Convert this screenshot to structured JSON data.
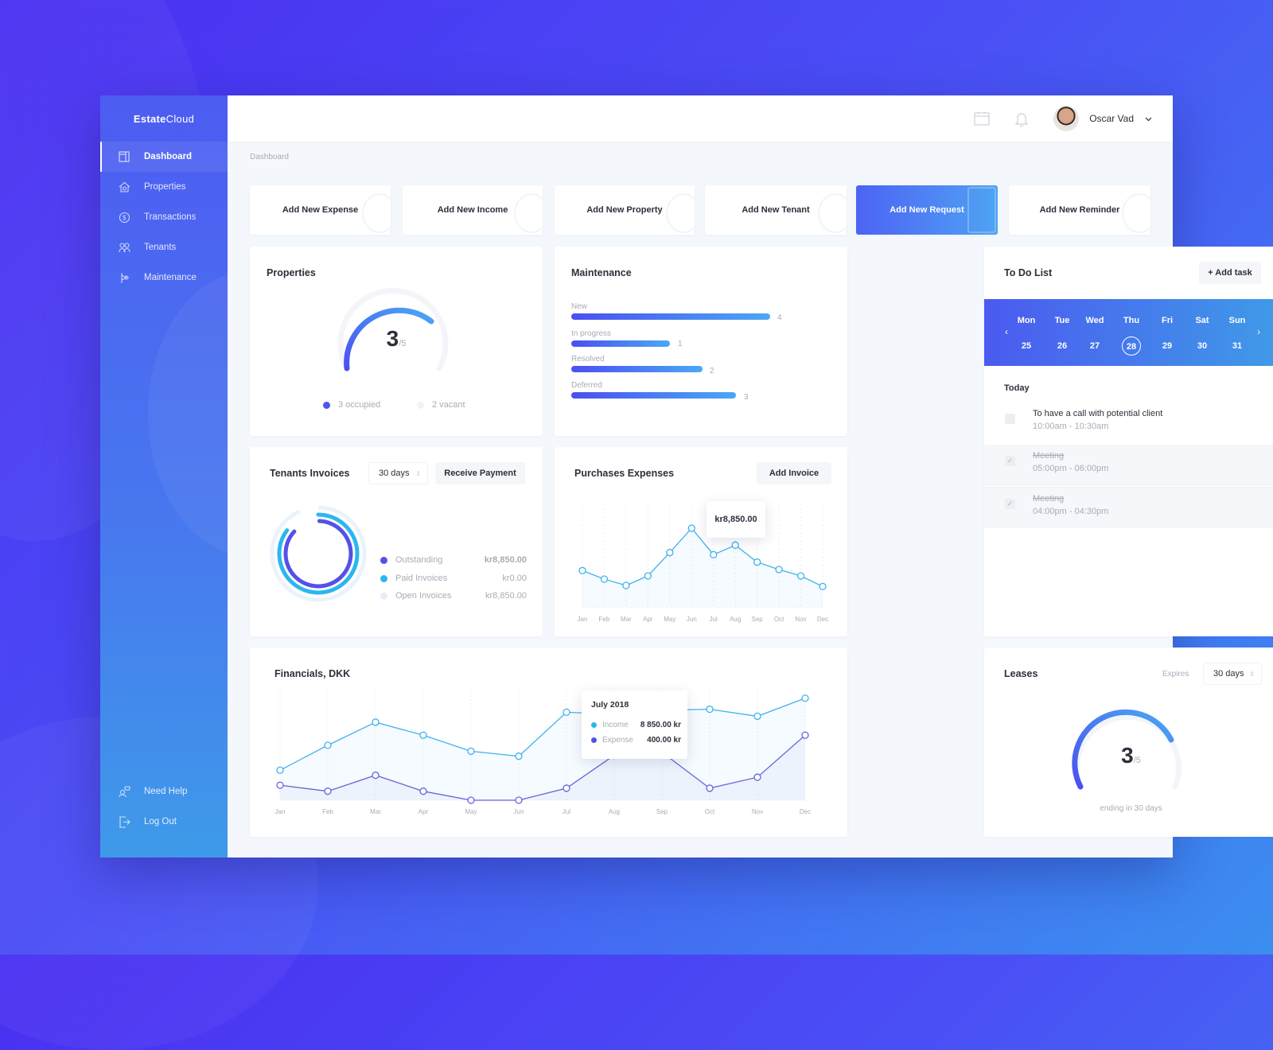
{
  "app": {
    "logo_prefix": "Estate",
    "logo_suffix": "Cloud"
  },
  "sidebar": {
    "items": [
      {
        "label": "Dashboard",
        "icon": "dashboard-icon",
        "active": true
      },
      {
        "label": "Properties",
        "icon": "house-icon"
      },
      {
        "label": "Transactions",
        "icon": "dollar-cycle-icon"
      },
      {
        "label": "Tenants",
        "icon": "people-icon"
      },
      {
        "label": "Maintenance",
        "icon": "wrench-icon"
      }
    ],
    "bottom": [
      {
        "label": "Need Help",
        "icon": "help-icon"
      },
      {
        "label": "Log Out",
        "icon": "logout-icon"
      }
    ]
  },
  "topbar": {
    "user_name": "Oscar Vad",
    "icons": [
      "calendar-icon",
      "bell-icon",
      "chevron-down-icon"
    ]
  },
  "breadcrumb": "Dashboard",
  "quick_actions": [
    {
      "label": "Add New Expense"
    },
    {
      "label": "Add New Income"
    },
    {
      "label": "Add New Property"
    },
    {
      "label": "Add New Tenant"
    },
    {
      "label": "Add New Request",
      "active": true
    },
    {
      "label": "Add New Reminder"
    }
  ],
  "properties": {
    "title": "Properties",
    "value": "3",
    "total": "/5",
    "occupied": "3 occupied",
    "vacant": "2 vacant"
  },
  "maintenance": {
    "title": "Maintenance",
    "rows": [
      {
        "label": "New",
        "value": "4"
      },
      {
        "label": "In progress",
        "value": "1"
      },
      {
        "label": "Resolved",
        "value": "2"
      },
      {
        "label": "Deferred",
        "value": "3"
      }
    ]
  },
  "todo": {
    "title": "To Do List",
    "add_label": "+ Add task",
    "days": [
      {
        "name": "Mon",
        "num": "25"
      },
      {
        "name": "Tue",
        "num": "26"
      },
      {
        "name": "Wed",
        "num": "27"
      },
      {
        "name": "Thu",
        "num": "28",
        "selected": true
      },
      {
        "name": "Fri",
        "num": "29"
      },
      {
        "name": "Sat",
        "num": "30"
      },
      {
        "name": "Sun",
        "num": "31"
      }
    ],
    "prev": "‹",
    "next": "›",
    "today_label": "Today",
    "tasks": [
      {
        "title": "To have a call with potential client",
        "time": "10:00am - 10:30am",
        "done": false
      },
      {
        "title": "Meeting",
        "time": "05:00pm - 06:00pm",
        "done": true,
        "check": "✓"
      },
      {
        "title": "Meeting",
        "time": "04:00pm - 04:30pm",
        "done": true,
        "check": "✓"
      }
    ]
  },
  "invoices": {
    "title": "Tenants Invoices",
    "period": "30 days",
    "action": "Receive Payment",
    "legend": [
      {
        "label": "Outstanding",
        "value": "kr8,850.00",
        "color": "#5450e8"
      },
      {
        "label": "Paid Invoices",
        "value": "kr0.00",
        "color": "#2bb6f0"
      },
      {
        "label": "Open Invoices",
        "value": "kr8,850.00",
        "color": "#e4effa"
      }
    ]
  },
  "purchases": {
    "title": "Purchases Expenses",
    "action": "Add Invoice",
    "tooltip": "kr8,850.00"
  },
  "financials": {
    "title": "Financials, DKK",
    "tooltip": {
      "title": "July 2018",
      "income_label": "Income",
      "income_value": "8 850.00 kr",
      "expense_label": "Expense",
      "expense_value": "400.00 kr"
    }
  },
  "leases": {
    "title": "Leases",
    "expires_label": "Expires",
    "period": "30 days",
    "value": "3",
    "total": "/5",
    "caption": "ending in 30 days"
  },
  "chart_data": [
    {
      "type": "line",
      "title": "Purchases Expenses",
      "categories": [
        "Jan",
        "Feb",
        "Mar",
        "Apr",
        "May",
        "Jun",
        "Jul",
        "Aug",
        "Sep",
        "Oct",
        "Nov",
        "Dec"
      ],
      "series": [
        {
          "name": "Expenses",
          "values": [
            35,
            27,
            21,
            30,
            52,
            75,
            50,
            59,
            43,
            36,
            30,
            20
          ],
          "color": "#3fb2ec"
        }
      ],
      "annotation": "kr8,850.00 at Aug",
      "grid": true
    },
    {
      "type": "line",
      "title": "Financials, DKK",
      "categories": [
        "Jan",
        "Feb",
        "Mar",
        "Apr",
        "May",
        "Jun",
        "Jul",
        "Aug",
        "Sep",
        "Oct",
        "Nov",
        "Dec"
      ],
      "series": [
        {
          "name": "Income",
          "values": [
            30,
            55,
            78,
            65,
            49,
            44,
            88,
            86,
            90,
            91,
            84,
            102
          ],
          "color": "#3fb2ec"
        },
        {
          "name": "Expense",
          "values": [
            15,
            9,
            25,
            9,
            0,
            0,
            12,
            45,
            48,
            12,
            23,
            65
          ],
          "color": "#6a62dc"
        }
      ],
      "tooltip": {
        "month": "July 2018",
        "income": "8 850.00 kr",
        "expense": "400.00 kr"
      },
      "grid": true
    },
    {
      "type": "pie",
      "title": "Tenants Invoices",
      "categories": [
        "Outstanding",
        "Paid Invoices",
        "Open Invoices"
      ],
      "values": [
        8850,
        0,
        8850
      ]
    },
    {
      "type": "bar",
      "title": "Maintenance",
      "categories": [
        "New",
        "In progress",
        "Resolved",
        "Deferred"
      ],
      "values": [
        4,
        1,
        2,
        3
      ]
    }
  ]
}
